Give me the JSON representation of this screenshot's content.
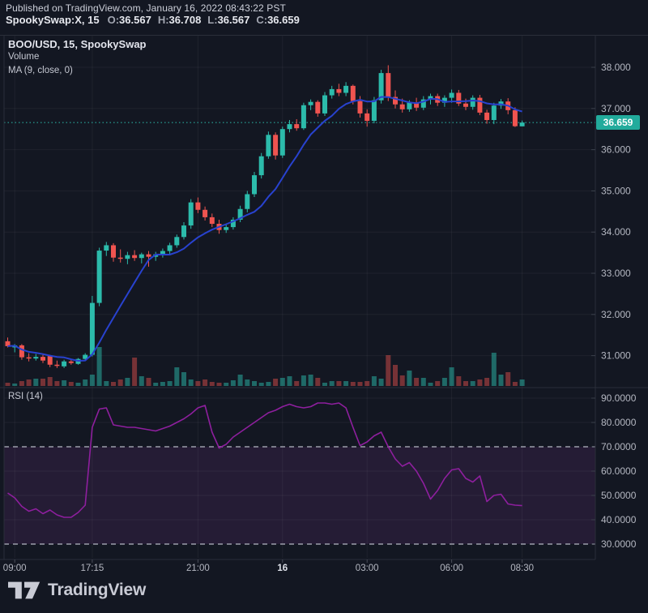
{
  "header": {
    "published": "Published on TradingView.com, January 16, 2022 08:43:22 PST",
    "symbol_title": "SpookySwap:X, 15",
    "ohlc": [
      {
        "label": "O:",
        "value": "36.567"
      },
      {
        "label": "H:",
        "value": "36.708"
      },
      {
        "label": "L:",
        "value": "36.567"
      },
      {
        "label": "C:",
        "value": "36.659"
      }
    ]
  },
  "legend": {
    "pair": "BOO/USD, 15, SpookySwap",
    "volume": "Volume",
    "ma": "MA (9, close, 0)"
  },
  "rsi_panel": {
    "label": "RSI (14)",
    "upper_band": 70,
    "lower_band": 30,
    "axis_labels": [
      "90.0000",
      "80.0000",
      "70.0000",
      "60.0000",
      "50.0000",
      "40.0000",
      "30.0000"
    ]
  },
  "price_axis": {
    "labels": [
      "38.000",
      "37.000",
      "36.000",
      "35.000",
      "34.000",
      "33.000",
      "32.000",
      "31.000"
    ],
    "current": "36.659"
  },
  "footer": {
    "brand": "TradingView"
  },
  "colors": {
    "background": "#131722",
    "up": "#2cbbab",
    "down": "#f05450",
    "ma_line": "#2842cf",
    "rsi_line": "#8e1f9e",
    "rsi_band_fill": "rgba(140,60,170,0.15)",
    "band_dash": "#9b9eaa",
    "grid": "rgba(255,255,255,0.05)",
    "border": "#2a2e39",
    "axis_text": "#b4b7c1",
    "current_price_line": "#2cbbab",
    "badge": "#22ab9c"
  },
  "chart_data": {
    "type": "candlestick",
    "title": "BOO/USD, 15, SpookySwap",
    "exchange": "SpookySwap",
    "interval_minutes": 15,
    "legend_note": "MA (9, close, 0); Volume; RSI (14)",
    "price_axis_values": [
      38,
      37,
      36,
      35,
      34,
      33,
      32,
      31
    ],
    "rsi_axis_values": [
      90,
      80,
      70,
      60,
      50,
      40,
      30
    ],
    "current_price": 36.659,
    "last_bar_ohlc": {
      "o": 36.567,
      "h": 36.708,
      "l": 36.567,
      "c": 36.659
    },
    "time_ticks": [
      {
        "label": "09:00",
        "index": 1,
        "emphasis": false
      },
      {
        "label": "17:15",
        "index": 12,
        "emphasis": false
      },
      {
        "label": "21:00",
        "index": 27,
        "emphasis": false
      },
      {
        "label": "16",
        "index": 39,
        "emphasis": true
      },
      {
        "label": "03:00",
        "index": 51,
        "emphasis": false
      },
      {
        "label": "06:00",
        "index": 63,
        "emphasis": false
      },
      {
        "label": "08:30",
        "index": 73,
        "emphasis": false
      }
    ],
    "candles": [
      [
        31.35,
        31.44,
        31.2,
        31.23
      ],
      [
        31.2,
        31.28,
        31.08,
        31.25
      ],
      [
        31.25,
        31.28,
        30.9,
        30.96
      ],
      [
        30.96,
        31.06,
        30.86,
        30.93
      ],
      [
        30.93,
        31.04,
        30.88,
        30.97
      ],
      [
        30.97,
        31.02,
        30.82,
        30.88
      ],
      [
        30.99,
        31.02,
        30.72,
        30.78
      ],
      [
        30.78,
        30.88,
        30.7,
        30.75
      ],
      [
        30.74,
        30.9,
        30.7,
        30.86
      ],
      [
        30.86,
        30.92,
        30.78,
        30.82
      ],
      [
        30.8,
        30.94,
        30.78,
        30.92
      ],
      [
        30.92,
        31.06,
        30.88,
        31.02
      ],
      [
        31.02,
        32.45,
        30.98,
        32.28
      ],
      [
        32.28,
        33.62,
        32.2,
        33.55
      ],
      [
        33.55,
        33.76,
        33.42,
        33.68
      ],
      [
        33.68,
        33.73,
        33.28,
        33.38
      ],
      [
        33.38,
        33.58,
        33.26,
        33.35
      ],
      [
        33.35,
        33.52,
        33.22,
        33.44
      ],
      [
        33.44,
        33.56,
        33.3,
        33.37
      ],
      [
        33.37,
        33.5,
        33.24,
        33.46
      ],
      [
        33.46,
        33.54,
        33.16,
        33.4
      ],
      [
        33.4,
        33.52,
        33.3,
        33.46
      ],
      [
        33.46,
        33.6,
        33.38,
        33.54
      ],
      [
        33.54,
        33.74,
        33.46,
        33.68
      ],
      [
        33.68,
        33.94,
        33.62,
        33.88
      ],
      [
        33.88,
        34.24,
        33.82,
        34.16
      ],
      [
        34.16,
        34.8,
        34.08,
        34.72
      ],
      [
        34.72,
        34.84,
        34.46,
        34.54
      ],
      [
        34.54,
        34.62,
        34.28,
        34.36
      ],
      [
        34.36,
        34.45,
        34.12,
        34.2
      ],
      [
        34.2,
        34.3,
        33.96,
        34.05
      ],
      [
        34.05,
        34.18,
        33.98,
        34.12
      ],
      [
        34.12,
        34.36,
        34.06,
        34.3
      ],
      [
        34.3,
        34.64,
        34.24,
        34.56
      ],
      [
        34.56,
        35.0,
        34.48,
        34.92
      ],
      [
        34.92,
        35.46,
        34.85,
        35.38
      ],
      [
        35.38,
        35.92,
        35.3,
        35.84
      ],
      [
        35.84,
        36.44,
        35.78,
        36.36
      ],
      [
        36.36,
        36.42,
        35.76,
        35.86
      ],
      [
        35.86,
        36.56,
        35.8,
        36.5
      ],
      [
        36.5,
        36.72,
        36.42,
        36.62
      ],
      [
        36.62,
        36.74,
        36.46,
        36.52
      ],
      [
        36.52,
        37.14,
        36.48,
        37.08
      ],
      [
        37.08,
        37.22,
        36.96,
        37.16
      ],
      [
        37.16,
        37.2,
        36.8,
        36.88
      ],
      [
        36.88,
        37.4,
        36.82,
        37.32
      ],
      [
        37.32,
        37.55,
        37.24,
        37.47
      ],
      [
        37.47,
        37.6,
        37.3,
        37.38
      ],
      [
        37.38,
        37.64,
        37.3,
        37.55
      ],
      [
        37.55,
        37.58,
        37.1,
        37.18
      ],
      [
        37.18,
        37.3,
        36.78,
        36.88
      ],
      [
        36.88,
        36.98,
        36.56,
        36.7
      ],
      [
        36.7,
        37.28,
        36.64,
        37.2
      ],
      [
        37.2,
        37.94,
        37.12,
        37.86
      ],
      [
        37.86,
        38.05,
        37.18,
        37.28
      ],
      [
        37.28,
        37.44,
        37.0,
        37.1
      ],
      [
        37.1,
        37.24,
        36.9,
        36.98
      ],
      [
        36.98,
        37.2,
        36.92,
        37.14
      ],
      [
        37.14,
        37.26,
        36.94,
        37.02
      ],
      [
        37.02,
        37.3,
        36.96,
        37.22
      ],
      [
        37.22,
        37.36,
        37.1,
        37.3
      ],
      [
        37.3,
        37.36,
        37.06,
        37.14
      ],
      [
        37.14,
        37.32,
        37.04,
        37.26
      ],
      [
        37.26,
        37.46,
        37.14,
        37.38
      ],
      [
        37.38,
        37.45,
        37.06,
        37.12
      ],
      [
        37.12,
        37.24,
        36.96,
        37.04
      ],
      [
        37.04,
        37.32,
        36.97,
        37.26
      ],
      [
        37.26,
        37.33,
        36.84,
        36.9
      ],
      [
        36.9,
        36.97,
        36.63,
        36.72
      ],
      [
        36.72,
        37.14,
        36.62,
        37.07
      ],
      [
        37.07,
        37.23,
        36.99,
        37.17
      ],
      [
        37.17,
        37.25,
        36.86,
        36.96
      ],
      [
        36.96,
        37.03,
        36.55,
        36.57
      ],
      [
        36.567,
        36.708,
        36.567,
        36.659
      ]
    ],
    "volumes": [
      4,
      3,
      6,
      8,
      9,
      9,
      11,
      6,
      7,
      5,
      4,
      8,
      14,
      48,
      6,
      5,
      8,
      10,
      35,
      12,
      10,
      4,
      5,
      6,
      23,
      17,
      8,
      6,
      8,
      5,
      4,
      4,
      7,
      14,
      8,
      6,
      4,
      5,
      9,
      10,
      12,
      6,
      13,
      14,
      10,
      4,
      6,
      6,
      6,
      5,
      5,
      6,
      12,
      9,
      38,
      26,
      13,
      19,
      10,
      10,
      4,
      6,
      10,
      23,
      12,
      6,
      6,
      8,
      10,
      41,
      14,
      17,
      5,
      8
    ],
    "ma": {
      "period": 9,
      "source": "close",
      "offset": 0
    },
    "rsi": {
      "period": 14,
      "values": [
        51,
        49,
        45.5,
        43.5,
        44.5,
        42.5,
        44,
        42,
        41,
        41,
        43,
        46,
        78,
        85.5,
        86,
        79,
        78.5,
        78,
        78,
        77.5,
        77,
        76.5,
        77.5,
        78.5,
        80,
        81.5,
        83.5,
        86,
        87,
        76,
        69.5,
        71,
        74,
        76,
        78,
        80,
        82,
        84,
        85,
        86.5,
        87.5,
        86.5,
        86,
        86.5,
        88,
        88,
        87.5,
        88,
        86,
        78,
        70.5,
        72,
        74.5,
        76,
        70,
        65,
        62,
        63.5,
        60,
        55,
        48.5,
        52,
        57,
        60.5,
        61,
        57,
        55.5,
        58,
        47.5,
        50,
        50.5,
        46.5,
        46,
        45.8
      ]
    }
  }
}
